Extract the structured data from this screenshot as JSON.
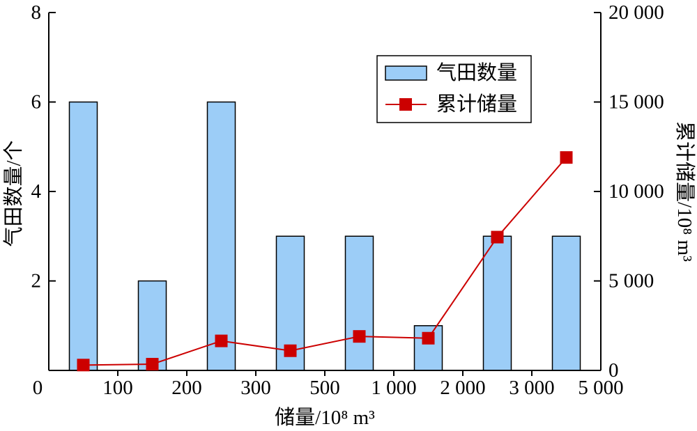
{
  "chart_data": {
    "type": "bar",
    "x": {
      "label": "储量/10⁸ m³",
      "tick_labels": [
        "0",
        "100",
        "200",
        "300",
        "500",
        "1 000",
        "2 000",
        "3 000",
        "5 000"
      ]
    },
    "y_left": {
      "label": "气田数量/个",
      "range": [
        0,
        8
      ],
      "ticks": [
        2,
        4,
        6,
        8
      ],
      "tick_labels": [
        "2",
        "4",
        "6",
        "8"
      ]
    },
    "y_right": {
      "label": "累计储量/10⁸ m³",
      "range": [
        0,
        20000
      ],
      "ticks": [
        0,
        5000,
        10000,
        15000,
        20000
      ],
      "tick_labels": [
        "0",
        "5 000",
        "10 000",
        "15 000",
        "20 000"
      ]
    },
    "series": [
      {
        "name": "气田数量",
        "type": "bar",
        "axis": "left",
        "values": [
          6,
          2,
          6,
          3,
          3,
          1,
          3,
          3
        ],
        "color": "#9ccdf7"
      },
      {
        "name": "累计储量",
        "type": "line",
        "axis": "right",
        "marker": "square",
        "values": [
          300,
          350,
          1650,
          1100,
          1900,
          1800,
          7450,
          11900
        ],
        "color": "#cc0000"
      }
    ],
    "grid": false,
    "legend": {
      "placement": "top-right"
    }
  }
}
